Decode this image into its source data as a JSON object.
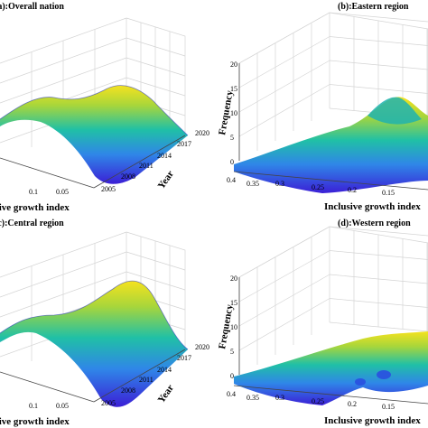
{
  "panels": [
    {
      "id": "a",
      "title": "(a):Overall nation"
    },
    {
      "id": "b",
      "title": "(b):Eastern region"
    },
    {
      "id": "c",
      "title": "(c):Central region"
    },
    {
      "id": "d",
      "title": "(d):Western region"
    }
  ],
  "chart_data": [
    {
      "type": "surface",
      "title": "(a):Overall nation",
      "xlabel": "Inclusive growth index",
      "ylabel": "Year",
      "zlabel": "Frequency",
      "x_ticks": [
        "0.1",
        "0.05"
      ],
      "y_ticks": [
        "2005",
        "2008",
        "2011",
        "2014",
        "2017",
        "2020"
      ],
      "colormap": [
        "#3b1fd6",
        "#2f86e8",
        "#20c0a6",
        "#a9d63a",
        "#f5e21f"
      ]
    },
    {
      "type": "surface",
      "title": "(b):Eastern region",
      "xlabel": "Inclusive growth index",
      "zlabel": "Frequency",
      "x_ticks": [
        "0.4",
        "0.35",
        "0.3",
        "0.25",
        "0.2",
        "0.15"
      ],
      "z_ticks": [
        "0",
        "5",
        "10",
        "15",
        "20"
      ],
      "zlim": [
        0,
        20
      ],
      "colormap": [
        "#3b1fd6",
        "#2f86e8",
        "#20c0a6",
        "#a9d63a",
        "#f5e21f"
      ]
    },
    {
      "type": "surface",
      "title": "(c):Central region",
      "xlabel": "Inclusive growth index",
      "ylabel": "Year",
      "zlabel": "Frequency",
      "x_ticks": [
        "0.1",
        "0.05"
      ],
      "y_ticks": [
        "2005",
        "2008",
        "2011",
        "2014",
        "2017",
        "2020"
      ],
      "colormap": [
        "#3b1fd6",
        "#2f86e8",
        "#20c0a6",
        "#a9d63a",
        "#f5e21f"
      ]
    },
    {
      "type": "surface",
      "title": "(d):Western region",
      "xlabel": "Inclusive growth index",
      "zlabel": "Frequency",
      "x_ticks": [
        "0.4",
        "0.35",
        "0.3",
        "0.25",
        "0.2",
        "0.15"
      ],
      "z_ticks": [
        "0",
        "5",
        "10",
        "15",
        "20"
      ],
      "zlim": [
        0,
        20
      ],
      "colormap": [
        "#3b1fd6",
        "#2f86e8",
        "#20c0a6",
        "#a9d63a",
        "#f5e21f"
      ]
    }
  ]
}
